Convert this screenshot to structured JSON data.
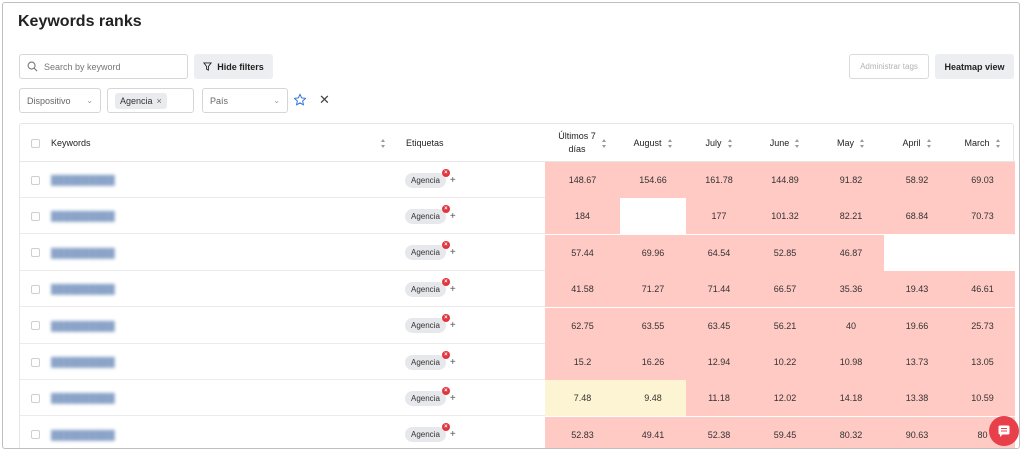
{
  "page": {
    "title": "Keywords ranks"
  },
  "toolbar": {
    "search_placeholder": "Search by keyword",
    "hide_filters_label": "Hide filters",
    "admin_tags_label": "Administrar tags",
    "heatmap_label": "Heatmap view"
  },
  "filters": {
    "device_placeholder": "Dispositivo",
    "tag_chip": "Agencia",
    "country_placeholder": "País"
  },
  "table": {
    "headers": {
      "keywords": "Keywords",
      "tags": "Etiquetas",
      "last7_line1": "Últimos 7",
      "last7_line2": "días",
      "august": "August",
      "july": "July",
      "june": "June",
      "may": "May",
      "april": "April",
      "march": "March"
    },
    "tag_label": "Agencia",
    "rows": [
      {
        "values": [
          "148.67",
          "154.66",
          "161.78",
          "144.89",
          "91.82",
          "58.92",
          "69.03"
        ],
        "heat": [
          "red",
          "red",
          "red",
          "red",
          "red",
          "red",
          "red"
        ]
      },
      {
        "values": [
          "184",
          "",
          "177",
          "101.32",
          "82.21",
          "68.84",
          "70.73"
        ],
        "heat": [
          "red",
          "none",
          "red",
          "red",
          "red",
          "red",
          "red"
        ]
      },
      {
        "values": [
          "57.44",
          "69.96",
          "64.54",
          "52.85",
          "46.87",
          "",
          ""
        ],
        "heat": [
          "red",
          "red",
          "red",
          "red",
          "red",
          "none",
          "none"
        ]
      },
      {
        "values": [
          "41.58",
          "71.27",
          "71.44",
          "66.57",
          "35.36",
          "19.43",
          "46.61"
        ],
        "heat": [
          "red",
          "red",
          "red",
          "red",
          "red",
          "red",
          "red"
        ]
      },
      {
        "values": [
          "62.75",
          "63.55",
          "63.45",
          "56.21",
          "40",
          "19.66",
          "25.73"
        ],
        "heat": [
          "red",
          "red",
          "red",
          "red",
          "red",
          "red",
          "red"
        ]
      },
      {
        "values": [
          "15.2",
          "16.26",
          "12.94",
          "10.22",
          "10.98",
          "13.73",
          "13.05"
        ],
        "heat": [
          "red",
          "red",
          "red",
          "red",
          "red",
          "red",
          "red"
        ]
      },
      {
        "values": [
          "7.48",
          "9.48",
          "11.18",
          "12.02",
          "14.18",
          "13.38",
          "10.59"
        ],
        "heat": [
          "yellow",
          "yellow",
          "red",
          "red",
          "red",
          "red",
          "red"
        ]
      },
      {
        "values": [
          "52.83",
          "49.41",
          "52.38",
          "59.45",
          "80.32",
          "90.63",
          "80"
        ],
        "heat": [
          "red",
          "red",
          "red",
          "red",
          "red",
          "red",
          "red"
        ]
      }
    ]
  },
  "colors": {
    "heat_red": "#ffc9c4",
    "heat_yellow": "#fdf4d4",
    "accent": "#e8404b",
    "star": "#3b7ddd"
  }
}
